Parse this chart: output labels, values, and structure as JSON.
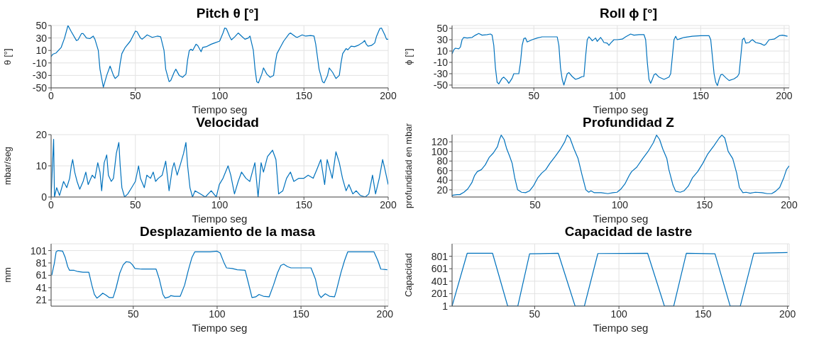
{
  "chart_data": [
    {
      "type": "line",
      "title": "Pitch θ [°]",
      "xlabel": "Tiempo seg",
      "ylabel": "θ [°]",
      "xlim": [
        0,
        200
      ],
      "xticks": [
        0,
        50,
        100,
        150,
        200
      ],
      "ylim": [
        -50,
        50
      ],
      "yticks": [
        -50,
        -30,
        -10,
        10,
        30,
        50
      ],
      "grid": true,
      "color": "#0072bd",
      "x": [
        0,
        1,
        3,
        6,
        8,
        10,
        12,
        15,
        16,
        18,
        19,
        21,
        23,
        25,
        26,
        28,
        29,
        31,
        33,
        35,
        37,
        38,
        40,
        41,
        42,
        44,
        47,
        50,
        51,
        53,
        54,
        57,
        60,
        63,
        65,
        67,
        68,
        70,
        71,
        73,
        74,
        76,
        78,
        80,
        81,
        82,
        83,
        84,
        86,
        87,
        89,
        90,
        92,
        95,
        97,
        100,
        102,
        103,
        104,
        106,
        107,
        109,
        111,
        113,
        115,
        117,
        118,
        120,
        121,
        122,
        123,
        125,
        126,
        128,
        130,
        132,
        133,
        134,
        136,
        138,
        141,
        142,
        145,
        146,
        149,
        151,
        154,
        156,
        157,
        158,
        159,
        161,
        162,
        164,
        165,
        167,
        169,
        171,
        172,
        173,
        175,
        176,
        178,
        180,
        182,
        185,
        186,
        187,
        188,
        190,
        191,
        192,
        193,
        195,
        196,
        198,
        199,
        200
      ],
      "values": [
        0,
        4,
        6,
        15,
        30,
        50,
        40,
        26,
        27,
        37,
        37,
        30,
        29,
        33,
        28,
        10,
        -20,
        -49,
        -30,
        -15,
        -30,
        -35,
        -30,
        -10,
        5,
        15,
        25,
        41,
        40,
        30,
        28,
        35,
        31,
        33,
        32,
        10,
        -20,
        -40,
        -38,
        -25,
        -20,
        -30,
        -33,
        -28,
        -5,
        10,
        12,
        10,
        20,
        18,
        8,
        15,
        16,
        20,
        22,
        25,
        38,
        46,
        45,
        32,
        27,
        32,
        38,
        33,
        28,
        30,
        33,
        10,
        -20,
        -40,
        -42,
        -28,
        -18,
        -28,
        -33,
        -30,
        -10,
        5,
        15,
        25,
        36,
        38,
        32,
        31,
        35,
        33,
        34,
        33,
        20,
        0,
        -20,
        -40,
        -42,
        -30,
        -18,
        -25,
        -35,
        -30,
        -10,
        5,
        13,
        11,
        17,
        16,
        18,
        23,
        26,
        20,
        17,
        18,
        20,
        22,
        32,
        45,
        46,
        35,
        28,
        28
      ]
    },
    {
      "type": "line",
      "title": "Roll ϕ [°]",
      "xlabel": "Tiempo seg",
      "ylabel": "ϕ [°]",
      "xlim": [
        1,
        203
      ],
      "xticks": [
        50,
        100,
        150,
        200
      ],
      "ylim": [
        -55,
        55
      ],
      "yticks": [
        -50,
        -30,
        -10,
        10,
        30,
        50
      ],
      "grid": true,
      "color": "#0072bd",
      "x": [
        1,
        2,
        3,
        5,
        6,
        7,
        8,
        10,
        13,
        15,
        17,
        19,
        22,
        24,
        25,
        26,
        27,
        28,
        29,
        31,
        32,
        34,
        35,
        37,
        38,
        41,
        42,
        43,
        44,
        45,
        46,
        49,
        52,
        55,
        60,
        64,
        65,
        66,
        67,
        68,
        69,
        70,
        71,
        73,
        75,
        77,
        79,
        80,
        81,
        82,
        83,
        84,
        85,
        87,
        88,
        90,
        91,
        92,
        94,
        95,
        96,
        98,
        100,
        103,
        105,
        108,
        110,
        113,
        116,
        117,
        118,
        119,
        120,
        121,
        122,
        123,
        125,
        128,
        131,
        132,
        133,
        134,
        135,
        136,
        138,
        140,
        145,
        150,
        155,
        156,
        157,
        158,
        159,
        160,
        161,
        162,
        163,
        165,
        167,
        170,
        172,
        173,
        174,
        175,
        176,
        177,
        179,
        180,
        181,
        183,
        186,
        188,
        189,
        191,
        194,
        197,
        199,
        202
      ],
      "values": [
        5,
        12,
        15,
        14,
        17,
        30,
        34,
        33,
        34,
        38,
        41,
        38,
        39,
        40,
        38,
        20,
        -20,
        -45,
        -48,
        -38,
        -36,
        -42,
        -47,
        -38,
        -30,
        -30,
        -10,
        20,
        32,
        33,
        26,
        30,
        33,
        35,
        35,
        35,
        20,
        -20,
        -40,
        -50,
        -40,
        -30,
        -28,
        -35,
        -40,
        -38,
        -35,
        -35,
        0,
        30,
        35,
        32,
        28,
        33,
        27,
        34,
        30,
        25,
        24,
        20,
        24,
        30,
        30,
        31,
        35,
        40,
        38,
        39,
        39,
        30,
        -10,
        -40,
        -47,
        -40,
        -32,
        -30,
        -36,
        -40,
        -36,
        -30,
        0,
        30,
        36,
        30,
        32,
        34,
        36,
        37,
        37,
        30,
        0,
        -30,
        -45,
        -51,
        -40,
        -32,
        -31,
        -37,
        -42,
        -39,
        -35,
        -30,
        0,
        30,
        33,
        24,
        25,
        28,
        30,
        25,
        23,
        20,
        22,
        30,
        31,
        37,
        38,
        36
      ]
    },
    {
      "type": "line",
      "title": "Velocidad",
      "xlabel": "Tiempo seg",
      "ylabel": "mbar/seg",
      "xlim": [
        0,
        200
      ],
      "xticks": [
        0,
        50,
        100,
        150,
        200
      ],
      "ylim": [
        0,
        20
      ],
      "yticks": [
        0,
        10,
        20
      ],
      "grid": true,
      "color": "#0072bd",
      "x": [
        0,
        1.5,
        2,
        3.3,
        5,
        7.4,
        9.3,
        11,
        12,
        12.8,
        14,
        15.4,
        17,
        19,
        20.6,
        22,
        24.4,
        26,
        27.7,
        29,
        30,
        31.5,
        33,
        34,
        35.7,
        37,
        38.7,
        40.2,
        41,
        42,
        43.6,
        45.5,
        47.8,
        50,
        51.9,
        53,
        55.3,
        56.8,
        59,
        60.6,
        62,
        63.6,
        65.9,
        68,
        70,
        71.9,
        73,
        74.8,
        77,
        78.6,
        80,
        81,
        82.4,
        83.9,
        85.4,
        88.5,
        91.5,
        95,
        98,
        99.8,
        102,
        105,
        106.6,
        108.8,
        111,
        113,
        115.6,
        117.9,
        120.9,
        122.8,
        124.6,
        126,
        128.4,
        131.4,
        133.4,
        135,
        137.5,
        139.7,
        142,
        144,
        147,
        150,
        152.5,
        155.5,
        157.8,
        160,
        162.3,
        163.8,
        166.8,
        169,
        171,
        172.9,
        175,
        176.7,
        179,
        181,
        183.5,
        186.4,
        188.5,
        190.7,
        192.5,
        194.7,
        196.7,
        198,
        200
      ],
      "values": [
        0,
        18.5,
        0,
        3,
        0.5,
        5,
        3,
        6,
        10,
        12,
        8,
        5,
        2.5,
        5,
        8,
        4,
        7,
        6,
        11,
        8,
        2,
        11,
        13.5,
        7,
        5,
        6,
        14,
        17.5,
        10,
        3,
        0,
        1,
        3,
        5,
        10,
        6,
        3,
        7,
        6,
        8,
        5,
        6,
        7,
        11.5,
        2,
        9,
        11,
        7,
        11,
        14,
        17.5,
        10,
        3,
        0,
        2,
        1,
        0,
        2,
        0,
        4,
        6,
        10,
        7,
        1,
        5,
        8,
        6,
        5,
        11,
        0,
        11,
        8,
        13,
        15,
        12,
        1,
        2,
        6,
        8,
        5,
        6,
        6,
        7,
        6,
        9,
        12,
        4,
        12,
        6,
        14.5,
        11,
        6,
        2,
        4,
        1,
        2,
        0.5,
        0,
        1,
        7,
        1,
        6,
        12,
        9,
        4
      ]
    },
    {
      "type": "line",
      "title": "Profundidad Z",
      "xlabel": "Tiempo seg",
      "ylabel": "profundidad en mbar",
      "xlim": [
        1,
        200
      ],
      "xticks": [
        50,
        100,
        150,
        200
      ],
      "ylim": [
        5,
        135
      ],
      "yticks": [
        20,
        40,
        60,
        80,
        100,
        120
      ],
      "grid": true,
      "color": "#0072bd",
      "x": [
        1,
        1.6,
        4,
        5.6,
        8,
        10.3,
        12.7,
        14.3,
        15.9,
        18.3,
        20.6,
        23,
        25.4,
        27.8,
        29,
        30,
        31.7,
        33.3,
        35,
        36.5,
        38,
        39.7,
        42,
        44.4,
        46.8,
        49,
        51.6,
        54,
        56.3,
        58.7,
        62,
        65,
        67.5,
        69,
        70.6,
        73,
        75.4,
        77.8,
        80,
        81.7,
        83,
        85,
        89,
        93,
        96,
        98.4,
        100.8,
        103,
        105.6,
        107,
        110,
        113.5,
        116.7,
        119.8,
        121.7,
        123.5,
        125.4,
        127.8,
        129,
        131.4,
        133,
        135.7,
        138,
        140.5,
        142.9,
        146,
        149,
        152,
        155.6,
        158.7,
        160.3,
        162,
        164,
        166.7,
        169,
        170.6,
        172.7,
        174.6,
        177,
        180,
        184,
        187,
        189.7,
        192,
        194.4,
        196.8,
        198.4,
        200
      ],
      "values": [
        7,
        9,
        10,
        10,
        15,
        22,
        35,
        50,
        58,
        62,
        72,
        88,
        97,
        110,
        125,
        134,
        125,
        105,
        90,
        75,
        45,
        20,
        15,
        14,
        18,
        28,
        45,
        55,
        62,
        75,
        90,
        105,
        120,
        134,
        128,
        105,
        85,
        50,
        20,
        15,
        18,
        14,
        14,
        12,
        14,
        15,
        22,
        32,
        50,
        58,
        67,
        85,
        100,
        118,
        134,
        125,
        105,
        85,
        62,
        30,
        17,
        15,
        18,
        28,
        45,
        58,
        75,
        95,
        112,
        128,
        134,
        128,
        100,
        85,
        55,
        25,
        14,
        15,
        13,
        15,
        14,
        12,
        12,
        17,
        25,
        45,
        62,
        70
      ]
    },
    {
      "type": "line",
      "title": "Desplazamiento de la masa",
      "xlabel": "Tiempo seg",
      "ylabel": "mm",
      "xlim": [
        1,
        202
      ],
      "xticks": [
        50,
        100,
        150,
        200
      ],
      "ylim": [
        11,
        112
      ],
      "yticks": [
        21,
        41,
        61,
        81,
        101
      ],
      "grid": true,
      "color": "#0072bd",
      "x": [
        1.4,
        2.9,
        4,
        5.2,
        7.9,
        9.4,
        10.9,
        12,
        14.7,
        17,
        20,
        23.5,
        25.3,
        26.8,
        28.3,
        29.8,
        31.8,
        33.6,
        35.6,
        38,
        39.7,
        42,
        44,
        45.8,
        48,
        49.5,
        51,
        54.8,
        59.4,
        63.6,
        65.5,
        67.7,
        69,
        71.5,
        72.3,
        74.5,
        78,
        80.6,
        82.9,
        85,
        86.7,
        91,
        95.8,
        100,
        101.8,
        104,
        105.6,
        109,
        112,
        116.7,
        118.5,
        120.8,
        123,
        125,
        127.6,
        131,
        133.6,
        136,
        138,
        139.7,
        142,
        144,
        150,
        156,
        158.6,
        160.6,
        162,
        164.5,
        167,
        170,
        171,
        173.8,
        176,
        177.9,
        182,
        188,
        193.5,
        195.8,
        197.6,
        201.5
      ],
      "values": [
        61,
        80,
        99,
        101,
        100,
        90,
        75,
        69,
        69,
        67,
        66,
        66,
        45,
        30,
        24,
        27,
        32,
        29,
        25,
        25,
        40,
        65,
        78,
        83,
        82,
        78,
        72,
        71,
        71,
        71,
        55,
        30,
        24,
        26,
        28,
        27,
        27,
        45,
        70,
        90,
        99,
        99,
        99,
        100,
        97,
        82,
        73,
        72,
        70,
        69,
        50,
        25,
        26,
        30,
        27,
        26,
        45,
        65,
        77,
        79,
        75,
        73,
        73,
        73,
        55,
        30,
        25,
        31,
        27,
        26,
        35,
        65,
        85,
        99,
        99,
        99,
        99,
        85,
        71,
        70
      ]
    },
    {
      "type": "line",
      "title": "Capacidad de lastre",
      "xlabel": "Tiempo seg",
      "ylabel": "Capacidad",
      "xlim": [
        1,
        201
      ],
      "xticks": [
        50,
        100,
        150,
        200
      ],
      "ylim": [
        1,
        1001
      ],
      "yticks": [
        1,
        201,
        401,
        601,
        801
      ],
      "grid": true,
      "color": "#0072bd",
      "x": [
        1,
        10,
        25,
        34,
        40,
        47,
        64,
        74,
        79.5,
        87.5,
        117,
        127,
        132.5,
        140,
        157,
        166,
        172,
        180,
        200
      ],
      "values": [
        1,
        850,
        850,
        1,
        1,
        840,
        850,
        1,
        1,
        845,
        850,
        1,
        1,
        850,
        840,
        1,
        1,
        850,
        860
      ]
    }
  ]
}
